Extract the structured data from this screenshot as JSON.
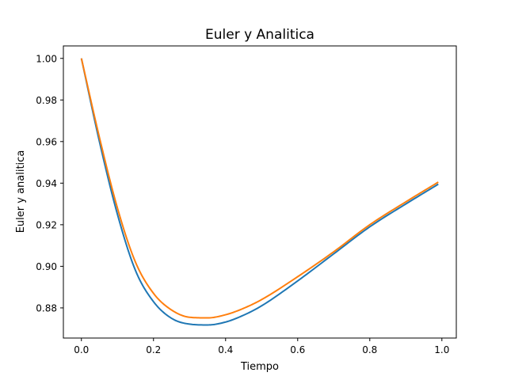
{
  "chart_data": {
    "type": "line",
    "title": "Euler y Analitica",
    "xlabel": "Tiempo",
    "ylabel": "Euler y analitica",
    "xlim": [
      -0.05,
      1.04
    ],
    "ylim": [
      0.8655,
      1.006
    ],
    "xticks": [
      0.0,
      0.2,
      0.4,
      0.6,
      0.8,
      1.0
    ],
    "xtick_labels": [
      "0.0",
      "0.2",
      "0.4",
      "0.6",
      "0.8",
      "1.0"
    ],
    "yticks": [
      0.88,
      0.9,
      0.92,
      0.94,
      0.96,
      0.98,
      1.0
    ],
    "ytick_labels": [
      "0.88",
      "0.90",
      "0.92",
      "0.94",
      "0.96",
      "0.98",
      "1.00"
    ],
    "grid": false,
    "legend": "none",
    "series": [
      {
        "color": "#1f77b4",
        "x": [
          0.0,
          0.05,
          0.1,
          0.15,
          0.2,
          0.25,
          0.3,
          0.35,
          0.4,
          0.45,
          0.5,
          0.6,
          0.7,
          0.8,
          0.9,
          0.99
        ],
        "values": [
          1.0,
          0.96,
          0.925,
          0.898,
          0.883,
          0.875,
          0.8722,
          0.8718,
          0.8732,
          0.8765,
          0.881,
          0.893,
          0.906,
          0.919,
          0.93,
          0.9395
        ]
      },
      {
        "color": "#ff7f0e",
        "x": [
          0.0,
          0.05,
          0.1,
          0.15,
          0.2,
          0.25,
          0.3,
          0.35,
          0.4,
          0.45,
          0.5,
          0.6,
          0.7,
          0.8,
          0.9,
          0.99
        ],
        "values": [
          1.0,
          0.962,
          0.928,
          0.902,
          0.887,
          0.879,
          0.8755,
          0.8752,
          0.8767,
          0.8798,
          0.884,
          0.895,
          0.907,
          0.92,
          0.931,
          0.9405
        ]
      }
    ]
  }
}
